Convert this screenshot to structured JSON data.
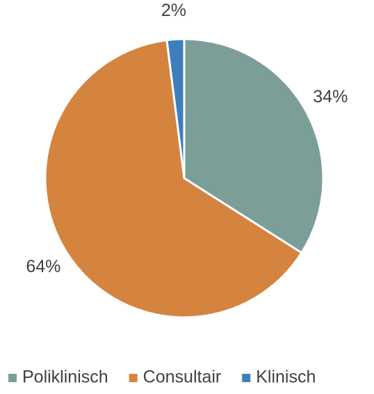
{
  "chart_data": {
    "type": "pie",
    "categories": [
      "Poliklinisch",
      "Consultair",
      "Klinisch"
    ],
    "values": [
      34,
      64,
      2
    ],
    "value_labels": [
      "34%",
      "64%",
      "2%"
    ],
    "colors": [
      "#7b9e98",
      "#d4843f",
      "#3d7fbd"
    ],
    "legend": "bottom"
  }
}
